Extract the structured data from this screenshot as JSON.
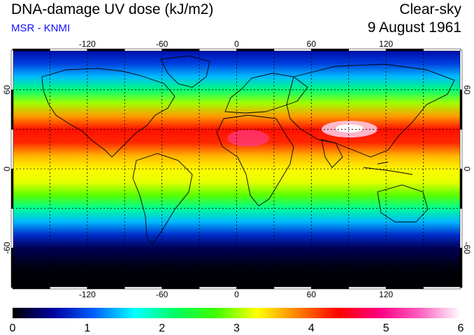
{
  "header": {
    "title": "DNA-damage UV dose (kJ/m2)",
    "subtitle": "MSR - KNMI",
    "condition": "Clear-sky",
    "date": "9 August 1961"
  },
  "map": {
    "projection": "equirectangular",
    "lon_range": [
      -180,
      180
    ],
    "lat_range": [
      -90,
      90
    ],
    "lon_ticks": [
      "-120",
      "-60",
      "0",
      "60",
      "120"
    ],
    "lat_ticks": [
      "60",
      "0",
      "-60"
    ],
    "graticule": "dashed every 30 degrees",
    "coastlines": true
  },
  "colorbar": {
    "min": 0,
    "max": 6,
    "labels": [
      "0",
      "1",
      "2",
      "3",
      "4",
      "5",
      "6"
    ],
    "colors": [
      "#000000",
      "#0000a0",
      "#0060ff",
      "#00ffff",
      "#00ff60",
      "#40ff00",
      "#ffff00",
      "#ff8000",
      "#ff0000",
      "#ff0080",
      "#ff60c0",
      "#ffffff"
    ]
  },
  "dose_profile": {
    "lat": [
      -90,
      -75,
      -60,
      -50,
      -40,
      -30,
      -20,
      -10,
      0,
      10,
      20,
      30,
      40,
      50,
      60,
      70,
      80,
      90
    ],
    "value": [
      0.0,
      0.05,
      0.3,
      0.8,
      1.4,
      2.0,
      2.8,
      3.2,
      3.3,
      3.6,
      4.2,
      4.3,
      3.7,
      3.0,
      2.1,
      1.4,
      0.9,
      0.6
    ]
  },
  "colors": {
    "subtitle": "#1010ff"
  }
}
